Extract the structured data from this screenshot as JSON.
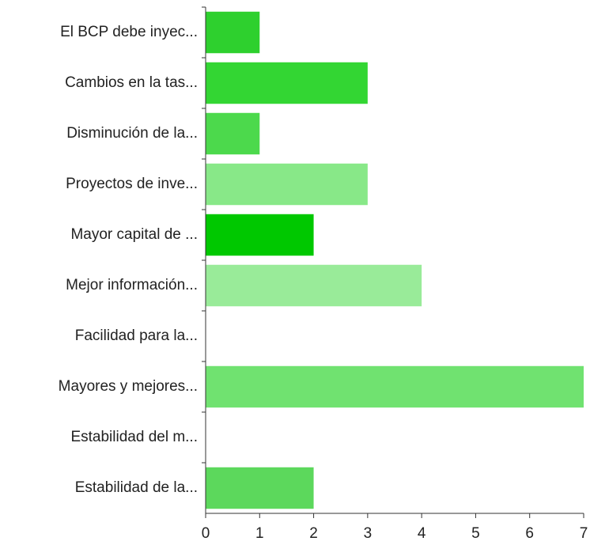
{
  "chart_data": {
    "type": "barh",
    "categories": [
      "El BCP debe inyec...",
      "Cambios en la tas...",
      "Disminución de la...",
      "Proyectos de inve...",
      "Mayor capital de ...",
      "Mejor información...",
      "Facilidad para la...",
      "Mayores y mejores...",
      "Estabilidad del m...",
      "Estabilidad de la..."
    ],
    "values": [
      1,
      3,
      1,
      3,
      2,
      4,
      0,
      7,
      0,
      2
    ],
    "colors": [
      "#2ed02e",
      "#33d633",
      "#4cd94c",
      "#88e888",
      "#00c800",
      "#99eb99",
      null,
      "#70e270",
      null,
      "#5cd85c"
    ],
    "xlim": [
      0,
      7
    ],
    "xticks": [
      0,
      1,
      2,
      3,
      4,
      5,
      6,
      7
    ],
    "grid": false
  }
}
